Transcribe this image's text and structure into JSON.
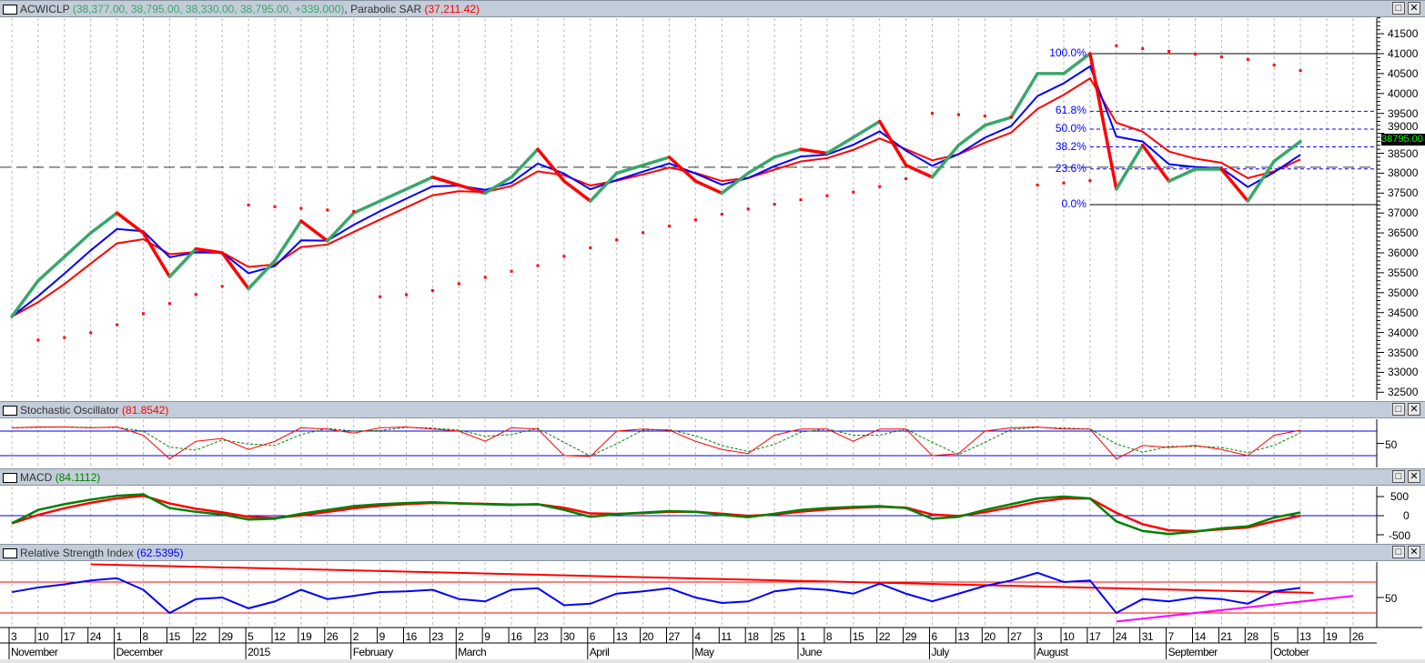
{
  "panels": {
    "main": {
      "symbol": "ACWICLP",
      "ohlc": "(38,377.00, 38,795.00, 38,330.00, 38,795.00, +339.000)",
      "indicator": "Parabolic SAR",
      "indicator_value": "(37,211.42)",
      "last_price": "38795.00"
    },
    "stoch": {
      "title": "Stochastic Oscillator",
      "value": "(81.8542)",
      "axis": [
        "50"
      ]
    },
    "macd": {
      "title": "MACD",
      "value": "(84.1112)",
      "axis": [
        "500",
        "0",
        "-500"
      ]
    },
    "rsi": {
      "title": "Relative Strength Index",
      "value": "(62.5395)",
      "axis": [
        "50"
      ]
    }
  },
  "window_buttons": {
    "maximize": "□",
    "close": "✕"
  },
  "fib_labels": [
    "100.0%",
    "61.8%",
    "50.0%",
    "38.2%",
    "23.6%",
    "0.0%"
  ],
  "x_axis": {
    "days": [
      "3",
      "10",
      "17",
      "24",
      "1",
      "8",
      "15",
      "22",
      "29",
      "5",
      "12",
      "19",
      "26",
      "2",
      "9",
      "16",
      "23",
      "2",
      "9",
      "16",
      "23",
      "30",
      "6",
      "13",
      "20",
      "27",
      "4",
      "11",
      "18",
      "25",
      "1",
      "8",
      "15",
      "22",
      "29",
      "6",
      "13",
      "20",
      "27",
      "3",
      "10",
      "17",
      "24",
      "31",
      "7",
      "14",
      "21",
      "28",
      "5",
      "13",
      "19",
      "26"
    ],
    "months": [
      {
        "label": "November",
        "week": 0
      },
      {
        "label": "December",
        "week": 4
      },
      {
        "label": "2015",
        "week": 9
      },
      {
        "label": "February",
        "week": 13
      },
      {
        "label": "March",
        "week": 17
      },
      {
        "label": "April",
        "week": 22
      },
      {
        "label": "May",
        "week": 26
      },
      {
        "label": "June",
        "week": 30
      },
      {
        "label": "July",
        "week": 35
      },
      {
        "label": "August",
        "week": 39
      },
      {
        "label": "September",
        "week": 44
      },
      {
        "label": "October",
        "week": 48
      }
    ]
  },
  "colors": {
    "up": "#3aa66a",
    "down": "#ff0000",
    "ma_fast": "#0000ff",
    "ma_slow": "#ff0000",
    "sar": "#ff0000",
    "fib": "#0000ff",
    "grid": "#bbbbbb",
    "rsi_trend_up": "#ff00ff"
  },
  "chart_data": [
    {
      "type": "line",
      "title": "ACWICLP",
      "y_ticks": [
        32500,
        33000,
        33500,
        34000,
        34500,
        35000,
        35500,
        36000,
        36500,
        37000,
        37500,
        38000,
        38500,
        39000,
        39500,
        40000,
        40500,
        41000,
        41500
      ],
      "ylim": [
        32300,
        41800
      ],
      "close": [
        34400,
        35300,
        35900,
        36500,
        37000,
        36500,
        35400,
        36100,
        36000,
        35100,
        35800,
        36800,
        36300,
        37000,
        37300,
        37600,
        37900,
        37700,
        37500,
        37900,
        38600,
        37800,
        37300,
        38000,
        38200,
        38400,
        37800,
        37500,
        38000,
        38400,
        38600,
        38500,
        38900,
        39300,
        38200,
        37900,
        38700,
        39200,
        39400,
        40500,
        40500,
        41000,
        37600,
        38700,
        37800,
        38100,
        38100,
        37300,
        38300,
        38795
      ],
      "fibonacci": {
        "high": 41000,
        "low": 37211,
        "levels": [
          1.0,
          0.618,
          0.5,
          0.382,
          0.236,
          0.0
        ],
        "start_week": 41
      },
      "horizontal_line": 38150
    },
    {
      "type": "line",
      "title": "Stochastic Oscillator",
      "ylim": [
        0,
        100
      ],
      "bands": [
        80,
        20
      ],
      "values": [
        88,
        90,
        90,
        88,
        90,
        70,
        12,
        55,
        62,
        35,
        55,
        88,
        85,
        75,
        88,
        90,
        85,
        80,
        55,
        88,
        85,
        20,
        18,
        80,
        85,
        82,
        55,
        35,
        25,
        70,
        85,
        85,
        55,
        85,
        85,
        20,
        25,
        80,
        88,
        90,
        85,
        85,
        12,
        45,
        40,
        45,
        35,
        20,
        70,
        81.85
      ]
    },
    {
      "type": "line",
      "title": "MACD",
      "ylim": [
        -700,
        700
      ],
      "values": [
        -200,
        150,
        300,
        420,
        520,
        560,
        200,
        100,
        30,
        -100,
        -80,
        50,
        150,
        250,
        300,
        330,
        350,
        320,
        300,
        280,
        300,
        150,
        -30,
        40,
        80,
        120,
        100,
        20,
        -40,
        50,
        150,
        200,
        230,
        250,
        200,
        -80,
        -30,
        150,
        300,
        450,
        500,
        450,
        -150,
        -400,
        -480,
        -420,
        -330,
        -280,
        -50,
        84.11
      ]
    },
    {
      "type": "line",
      "title": "Relative Strength Index",
      "ylim": [
        5,
        95
      ],
      "bands": [
        70,
        30
      ],
      "values": [
        57,
        63,
        67,
        72,
        75,
        60,
        30,
        48,
        50,
        36,
        45,
        60,
        48,
        52,
        57,
        58,
        60,
        48,
        45,
        60,
        62,
        40,
        42,
        55,
        58,
        62,
        50,
        43,
        45,
        58,
        62,
        60,
        55,
        68,
        55,
        45,
        55,
        65,
        72,
        82,
        70,
        72,
        30,
        48,
        45,
        50,
        48,
        42,
        58,
        62.54
      ],
      "trendlines": [
        {
          "from": [
            3,
            93
          ],
          "to": [
            49.5,
            56
          ],
          "color": "#ff0000"
        },
        {
          "from": [
            42,
            19
          ],
          "to": [
            51,
            52
          ],
          "color": "#ff00ff"
        }
      ]
    }
  ]
}
